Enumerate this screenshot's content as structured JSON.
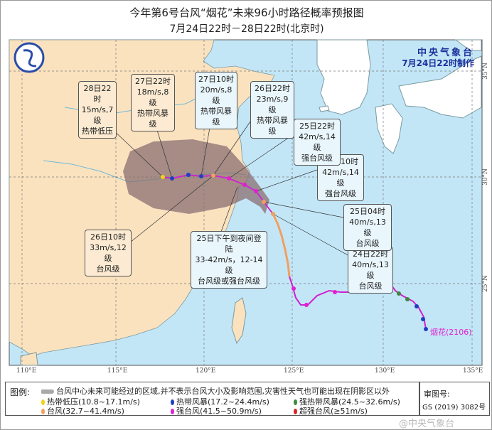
{
  "title": "今年第6号台风“烟花”未来96小时路径概率预报图",
  "subtitle": "7月24日22时－28日22时(北京时)",
  "issuer": {
    "name": "中央气象台",
    "made_at": "7月24日22时制作",
    "logo": "cma-logo"
  },
  "typhoon_label": "烟花(2106)",
  "longitude_labels": [
    "110°E",
    "115°E",
    "120°E",
    "125°E",
    "130°E",
    "135°E"
  ],
  "latitude_labels": [
    "35°N",
    "30°N",
    "25°N"
  ],
  "forecast_points": [
    {
      "time": "24日22时",
      "wind": "40m/s,13级",
      "category": "台风级"
    },
    {
      "time": "25日04时",
      "wind": "40m/s,13级",
      "category": "台风级"
    },
    {
      "time": "25日10时",
      "wind": "42m/s,14级",
      "category": "强台风级"
    },
    {
      "time": "25日22时",
      "wind": "42m/s,14级",
      "category": "强台风级"
    },
    {
      "time": "26日10时",
      "wind": "33m/s,12级",
      "category": "台风级"
    },
    {
      "time": "26日22时",
      "wind": "23m/s,9级",
      "category": "热带风暴级"
    },
    {
      "time": "27日10时",
      "wind": "20m/s,8级",
      "category": "热带风暴级"
    },
    {
      "time": "27日22时",
      "wind": "18m/s,8级",
      "category": "热带风暴级"
    },
    {
      "time": "28日22时",
      "wind": "15m/s,7级",
      "category": "热带低压"
    }
  ],
  "landfall": {
    "line1": "25日下午到夜间登陆",
    "line2": "33-42m/s，12-14级",
    "line3": "台风级或强台风级"
  },
  "legend": {
    "label": "图例:",
    "cone": "台风中心未来可能经过的区域,并不表示台风大小及影响范围,灾害性天气也可能出现在阴影区以外",
    "items": [
      {
        "label": "热带低压(10.8~17.1m/s)",
        "color": "#f2d21b"
      },
      {
        "label": "热带风暴(17.2~24.4m/s)",
        "color": "#1f3fbf"
      },
      {
        "label": "强热带风暴(24.5~32.6m/s)",
        "color": "#3a8a3a"
      },
      {
        "label": "台风(32.7~41.4m/s)",
        "color": "#f0a060"
      },
      {
        "label": "强台风(41.5~50.9m/s)",
        "color": "#e020d0"
      },
      {
        "label": "超强台风(≥51m/s)",
        "color": "#e02020"
      }
    ]
  },
  "approval": {
    "label": "审图号:",
    "number": "GS (2019) 3082号"
  },
  "watermark": "@中央气象台",
  "colors": {
    "sea": "#c3e6f7",
    "china_land": "#fbe2bf",
    "other_land": "#ffffff",
    "cone": "#8a6f72",
    "track": "#d020d0"
  }
}
